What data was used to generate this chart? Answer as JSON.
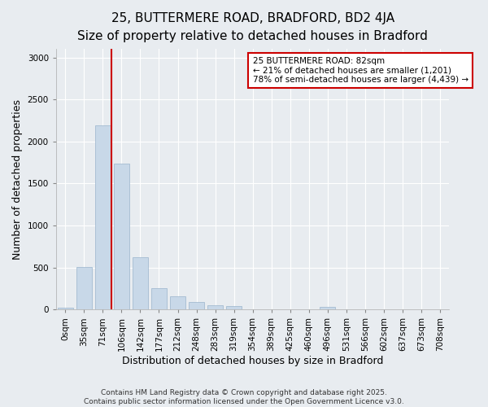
{
  "title1": "25, BUTTERMERE ROAD, BRADFORD, BD2 4JA",
  "title2": "Size of property relative to detached houses in Bradford",
  "xlabel": "Distribution of detached houses by size in Bradford",
  "ylabel": "Number of detached properties",
  "bar_labels": [
    "0sqm",
    "35sqm",
    "71sqm",
    "106sqm",
    "142sqm",
    "177sqm",
    "212sqm",
    "248sqm",
    "283sqm",
    "319sqm",
    "354sqm",
    "389sqm",
    "425sqm",
    "460sqm",
    "496sqm",
    "531sqm",
    "566sqm",
    "602sqm",
    "637sqm",
    "673sqm",
    "708sqm"
  ],
  "bar_values": [
    20,
    510,
    2190,
    1740,
    620,
    255,
    155,
    90,
    55,
    45,
    0,
    0,
    0,
    0,
    35,
    0,
    0,
    0,
    0,
    0,
    0
  ],
  "bar_color": "#c8d8e8",
  "bar_edge_color": "#9ab4cc",
  "vline_color": "#cc0000",
  "vline_x_index": 2.45,
  "annotation_box_text": "25 BUTTERMERE ROAD: 82sqm\n← 21% of detached houses are smaller (1,201)\n78% of semi-detached houses are larger (4,439) →",
  "annotation_box_color": "#cc0000",
  "annotation_box_fill": "#ffffff",
  "ylim": [
    0,
    3100
  ],
  "yticks": [
    0,
    500,
    1000,
    1500,
    2000,
    2500,
    3000
  ],
  "footnote": "Contains HM Land Registry data © Crown copyright and database right 2025.\nContains public sector information licensed under the Open Government Licence v3.0.",
  "bg_color": "#e8ecf0",
  "plot_bg_color": "#e8ecf0",
  "grid_color": "#ffffff",
  "title_fontsize": 11,
  "subtitle_fontsize": 10,
  "axis_label_fontsize": 9,
  "tick_fontsize": 7.5,
  "annotation_fontsize": 7.5,
  "footnote_fontsize": 6.5
}
